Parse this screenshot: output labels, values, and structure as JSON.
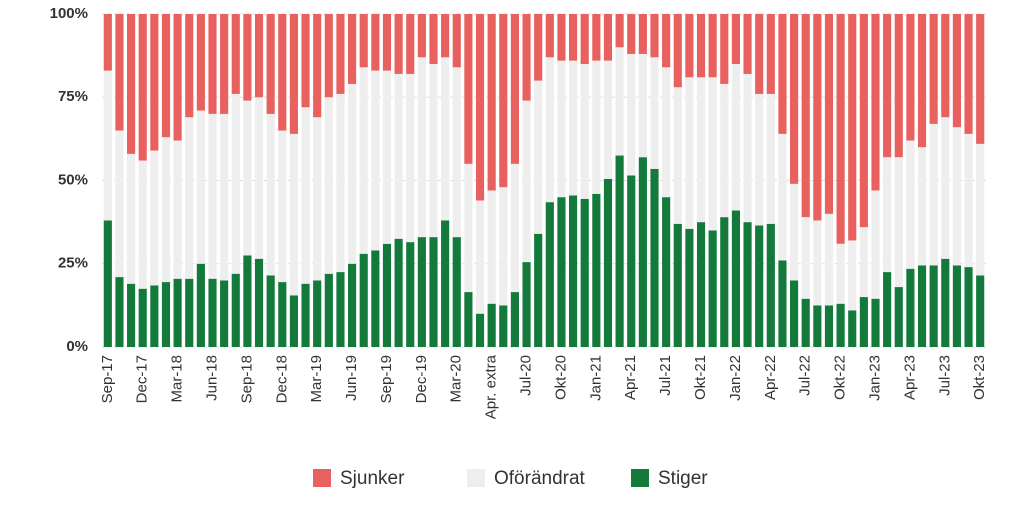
{
  "chart_data": {
    "type": "stacked_bar",
    "categories": [
      "Sep-17",
      null,
      null,
      "Dec-17",
      null,
      null,
      "Mar-18",
      null,
      null,
      "Jun-18",
      null,
      null,
      "Sep-18",
      null,
      null,
      "Dec-18",
      null,
      null,
      "Mar-19",
      null,
      null,
      "Jun-19",
      null,
      null,
      "Sep-19",
      null,
      null,
      "Dec-19",
      null,
      null,
      "Mar-20",
      null,
      null,
      "Apr. extra",
      null,
      null,
      "Jul-20",
      null,
      null,
      "Okt-20",
      null,
      null,
      "Jan-21",
      null,
      null,
      "Apr-21",
      null,
      null,
      "Jul-21",
      null,
      null,
      "Okt-21",
      null,
      null,
      "Jan-22",
      null,
      null,
      "Apr-22",
      null,
      null,
      "Jul-22",
      null,
      null,
      "Okt-22",
      null,
      null,
      "Jan-23",
      null,
      null,
      "Apr-23",
      null,
      null,
      "Jul-23",
      null,
      null,
      "Okt-23"
    ],
    "series": [
      {
        "name": "Stiger",
        "color": "#137a3c",
        "values": [
          38,
          21,
          19,
          17.5,
          18.5,
          19.5,
          20.5,
          20.5,
          25,
          20.5,
          20,
          22,
          27.5,
          26.5,
          21.5,
          19.5,
          15.5,
          19,
          20,
          22,
          22.5,
          25,
          28,
          29,
          31,
          32.5,
          31.5,
          33,
          33,
          38,
          33,
          16.5,
          10,
          13,
          12.5,
          16.5,
          25.5,
          34,
          43.5,
          45,
          45.5,
          44.5,
          46,
          50.5,
          57.5,
          51.5,
          57,
          53.5,
          45,
          37,
          35.5,
          37.5,
          35,
          39,
          41,
          37.5,
          36.5,
          37,
          26,
          20,
          14.5,
          12.5,
          12.5,
          13,
          11,
          15,
          14.5,
          22.5,
          18,
          23.5,
          24.5,
          24.5,
          26.5,
          24.5,
          24,
          21.5
        ]
      },
      {
        "name": "Oförändrat",
        "color": "#eeeeee",
        "values": [
          45,
          44,
          39,
          38.5,
          40.5,
          43.5,
          41.5,
          48.5,
          46,
          49.5,
          50,
          54,
          46.5,
          48.5,
          48.5,
          45.5,
          48.5,
          53,
          49,
          53,
          53.5,
          54,
          56,
          54,
          52,
          49.5,
          50.5,
          54,
          52,
          49,
          51,
          38.5,
          34,
          34,
          35.5,
          38.5,
          48.5,
          46,
          43.5,
          41,
          40.5,
          40.5,
          40,
          35.5,
          32.5,
          36.5,
          31,
          33.5,
          39,
          41,
          45.5,
          43.5,
          46,
          40,
          44,
          44.5,
          39.5,
          39,
          38,
          29,
          24.5,
          25.5,
          27.5,
          18,
          21,
          21,
          32.5,
          34.5,
          39,
          38.5,
          35.5,
          42.5,
          42.5,
          41.5,
          40,
          39.5
        ]
      },
      {
        "name": "Sjunker",
        "color": "#e8615f",
        "values": [
          17,
          35,
          42,
          44,
          41,
          37,
          38,
          31,
          29,
          30,
          30,
          24,
          26,
          25,
          30,
          35,
          36,
          28,
          31,
          25,
          24,
          21,
          16,
          17,
          17,
          18,
          18,
          13,
          15,
          13,
          16,
          45,
          56,
          53,
          52,
          45,
          26,
          20,
          13,
          14,
          14,
          15,
          14,
          14,
          10,
          12,
          12,
          13,
          16,
          22,
          19,
          19,
          19,
          21,
          15,
          18,
          24,
          24,
          36,
          51,
          61,
          62,
          60,
          69,
          68,
          64,
          53,
          43,
          43,
          38,
          40,
          33,
          31,
          34,
          36,
          39
        ]
      }
    ],
    "ylim": [
      0,
      100
    ],
    "yticks": [
      {
        "value": 0,
        "label": "0%"
      },
      {
        "value": 25,
        "label": "25%"
      },
      {
        "value": 50,
        "label": "50%"
      },
      {
        "value": 75,
        "label": "75%"
      },
      {
        "value": 100,
        "label": "100%"
      }
    ],
    "grid": true
  }
}
